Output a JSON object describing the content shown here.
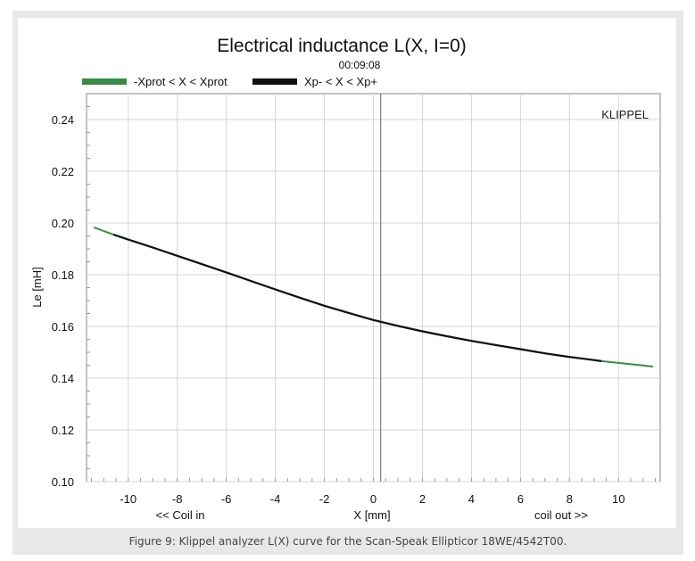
{
  "caption": "Figure 9: Klippel analyzer L(X) curve for the Scan-Speak Ellipticor 18WE/4542T00.",
  "chart_data": {
    "type": "line",
    "title": "Electrical inductance L(X, I=0)",
    "subtitle": "00:09:08",
    "watermark": "KLIPPEL",
    "xlabel": "X [mm]",
    "xlabel_left": "<< Coil in",
    "xlabel_right": "coil out >>",
    "ylabel": "Le [mH]",
    "xlim": [
      -11.7,
      11.7
    ],
    "ylim": [
      0.1,
      0.25
    ],
    "xticks": [
      -10,
      -8,
      -6,
      -4,
      -2,
      0,
      2,
      4,
      6,
      8,
      10
    ],
    "yticks": [
      "0.10",
      "0.12",
      "0.14",
      "0.16",
      "0.18",
      "0.20",
      "0.22",
      "0.24"
    ],
    "grid": true,
    "vertical_marker_x": 0.3,
    "legend_position": "top-left",
    "series": [
      {
        "name": "-Xprot < X < Xprot",
        "color": "#3a8a46",
        "x": [
          -11.4,
          -11.0,
          -10.6,
          -10.0,
          -9.0,
          -8.0,
          -7.0,
          -6.0,
          -5.0,
          -4.0,
          -3.0,
          -2.0,
          -1.0,
          0.0,
          1.0,
          2.0,
          3.0,
          4.0,
          5.0,
          6.0,
          7.0,
          8.0,
          9.0,
          9.3,
          10.0,
          11.0,
          11.4
        ],
        "y": [
          0.1983,
          0.1969,
          0.1955,
          0.1936,
          0.1905,
          0.1873,
          0.1841,
          0.1809,
          0.1776,
          0.1743,
          0.1711,
          0.168,
          0.1652,
          0.1625,
          0.1602,
          0.1581,
          0.1562,
          0.1544,
          0.1528,
          0.1512,
          0.1496,
          0.1482,
          0.147,
          0.1466,
          0.1459,
          0.1449,
          0.1445
        ]
      },
      {
        "name": "Xp- < X < Xp+",
        "color": "#111111",
        "x": [
          -10.6,
          -10.0,
          -9.0,
          -8.0,
          -7.0,
          -6.0,
          -5.0,
          -4.0,
          -3.0,
          -2.0,
          -1.0,
          0.0,
          1.0,
          2.0,
          3.0,
          4.0,
          5.0,
          6.0,
          7.0,
          8.0,
          9.0,
          9.3
        ],
        "y": [
          0.1955,
          0.1936,
          0.1905,
          0.1873,
          0.1841,
          0.1809,
          0.1776,
          0.1743,
          0.1711,
          0.168,
          0.1652,
          0.1625,
          0.1602,
          0.1581,
          0.1562,
          0.1544,
          0.1528,
          0.1512,
          0.1496,
          0.1482,
          0.147,
          0.1466
        ]
      }
    ]
  }
}
